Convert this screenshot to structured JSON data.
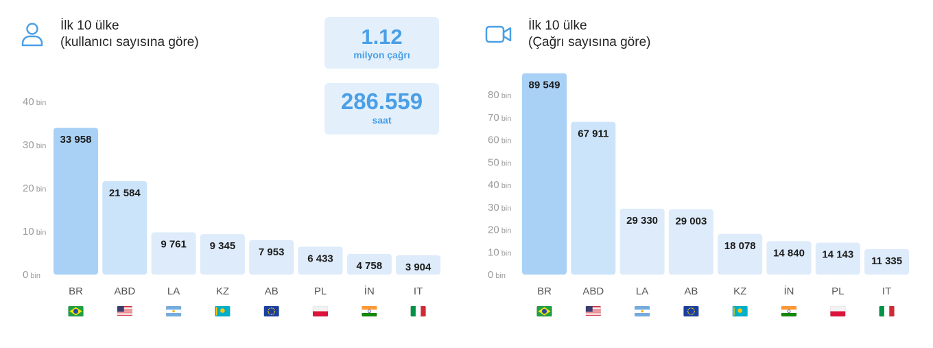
{
  "colors": {
    "accent": "#4a9fe6",
    "bar_top": "#a9d1f5",
    "bar": "#cce4fa",
    "bar_light": "#ddebfa",
    "stat_bg": "#e3f0fc"
  },
  "left": {
    "icon": "user-icon",
    "title_line1": "İlk 10 ülke",
    "title_line2": "(kullanıcı sayısına göre)",
    "stats": [
      {
        "value": "1.12",
        "label": "milyon çağrı"
      },
      {
        "value": "286.559",
        "label": "saat"
      }
    ]
  },
  "right": {
    "icon": "video-camera-icon",
    "title_line1": "İlk 10 ülke",
    "title_line2": "(Çağrı sayısına göre)"
  },
  "chart_data": [
    {
      "type": "bar",
      "title": "İlk 10 ülke (kullanıcı sayısına göre)",
      "categories": [
        "BR",
        "ABD",
        "LA",
        "KZ",
        "AB",
        "PL",
        "İN",
        "IT"
      ],
      "flags": [
        "flag-brazil",
        "flag-usa",
        "flag-argentina",
        "flag-kazakhstan",
        "flag-eu",
        "flag-poland",
        "flag-india",
        "flag-italy"
      ],
      "values": [
        33958,
        21584,
        9761,
        9345,
        7953,
        6433,
        4758,
        3904
      ],
      "value_labels": [
        "33 958",
        "21 584",
        "9 761",
        "9 345",
        "7 953",
        "6 433",
        "4 758",
        "3 904"
      ],
      "y_ticks": [
        0,
        10,
        20,
        30,
        40
      ],
      "y_unit": "bin",
      "ylim": [
        0,
        40000
      ],
      "grid": false
    },
    {
      "type": "bar",
      "title": "İlk 10 ülke (Çağrı sayısına göre)",
      "categories": [
        "BR",
        "ABD",
        "LA",
        "AB",
        "KZ",
        "İN",
        "PL",
        "IT"
      ],
      "flags": [
        "flag-brazil",
        "flag-usa",
        "flag-argentina",
        "flag-eu",
        "flag-kazakhstan",
        "flag-india",
        "flag-poland",
        "flag-italy"
      ],
      "values": [
        89549,
        67911,
        29330,
        29003,
        18078,
        14840,
        14143,
        11335
      ],
      "value_labels": [
        "89 549",
        "67 911",
        "29 330",
        "29 003",
        "18 078",
        "14 840",
        "14 143",
        "11 335"
      ],
      "y_ticks": [
        0,
        10,
        20,
        30,
        40,
        50,
        60,
        70,
        80
      ],
      "y_unit": "bin",
      "ylim": [
        0,
        80000
      ],
      "grid": false
    }
  ]
}
